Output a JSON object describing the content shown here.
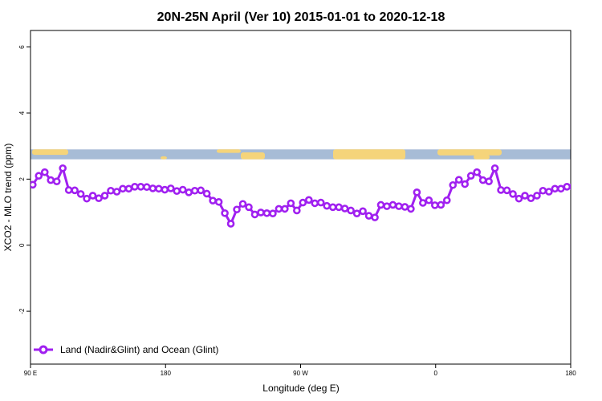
{
  "chart_data": {
    "type": "line",
    "title": "20N-25N April (Ver 10)   2015-01-01 to 2020-12-18",
    "xlabel": "Longitude (deg E)",
    "ylabel": "XCO2 - MLO trend (ppm)",
    "xlim": [
      90,
      450
    ],
    "ylim": [
      -3.6,
      6.5
    ],
    "x_ticks": [
      {
        "value": 90,
        "label": "90 E"
      },
      {
        "value": 180,
        "label": "180"
      },
      {
        "value": 270,
        "label": "90 W"
      },
      {
        "value": 360,
        "label": "0"
      },
      {
        "value": 450,
        "label": "180"
      }
    ],
    "x_tick_values_full": [
      90,
      450
    ],
    "y_ticks": [
      {
        "value": -2,
        "label": "-2"
      },
      {
        "value": 0,
        "label": "0"
      },
      {
        "value": 2,
        "label": "2"
      },
      {
        "value": 4,
        "label": "4"
      },
      {
        "value": 6,
        "label": "6"
      }
    ],
    "map_band": {
      "ymin": 2.6,
      "ymax": 2.9,
      "ocean_color": "#a7bcd6",
      "land_color": "#f5d47a"
    },
    "series": [
      {
        "name": "Land (Nadir&Glint) and Ocean (Glint)",
        "color": "#a020f0",
        "x": [
          91.5,
          95.5,
          99.5,
          103.5,
          107.5,
          111.5,
          115.5,
          119.5,
          123.5,
          127.5,
          131.5,
          135.5,
          139.5,
          143.5,
          147.5,
          151.5,
          155.5,
          159.5,
          163.5,
          167.5,
          171.5,
          175.5,
          179.5,
          183.5,
          187.5,
          191.5,
          195.5,
          199.5,
          203.5,
          207.5,
          211.5,
          215.5,
          219.5,
          223.5,
          227.5,
          231.5,
          235.5,
          239.5,
          243.5,
          247.5,
          251.5,
          255.5,
          259.5,
          263.5,
          267.5,
          271.5,
          275.5,
          279.5,
          283.5,
          287.5,
          291.5,
          295.5,
          299.5,
          303.5,
          307.5,
          311.5,
          315.5,
          319.5,
          323.5,
          327.5,
          331.5,
          335.5,
          339.5,
          343.5,
          347.5,
          351.5,
          355.5,
          359.5,
          363.5,
          367.5,
          371.5,
          375.5,
          379.5,
          383.5,
          387.5,
          391.5,
          395.5,
          399.5,
          403.5,
          407.5,
          411.5,
          415.5,
          419.5,
          423.5,
          427.5,
          431.5,
          435.5,
          439.5,
          443.5,
          447.5,
          451.5
        ],
        "y": [
          1.83,
          2.1,
          2.21,
          1.97,
          1.93,
          2.33,
          1.67,
          1.66,
          1.55,
          1.41,
          1.5,
          1.42,
          1.5,
          1.65,
          1.62,
          1.71,
          1.71,
          1.77,
          1.77,
          1.76,
          1.72,
          1.71,
          1.68,
          1.72,
          1.64,
          1.68,
          1.6,
          1.65,
          1.66,
          1.56,
          1.35,
          1.31,
          0.97,
          0.65,
          1.08,
          1.25,
          1.15,
          0.93,
          0.99,
          0.97,
          0.96,
          1.1,
          1.1,
          1.27,
          1.05,
          1.29,
          1.37,
          1.27,
          1.29,
          1.19,
          1.15,
          1.15,
          1.11,
          1.05,
          0.96,
          1.03,
          0.89,
          0.84,
          1.22,
          1.18,
          1.22,
          1.18,
          1.16,
          1.1,
          1.6,
          1.28,
          1.36,
          1.21,
          1.22,
          1.36,
          1.82,
          1.98,
          1.85,
          2.1,
          2.21,
          1.97,
          1.93,
          2.33,
          1.67,
          1.66,
          1.55,
          1.41,
          1.5,
          1.42,
          1.5,
          1.65,
          1.62,
          1.71,
          1.71,
          1.77,
          1.77
        ]
      }
    ],
    "legend": {
      "position": "bottom-left"
    },
    "grid": false
  }
}
